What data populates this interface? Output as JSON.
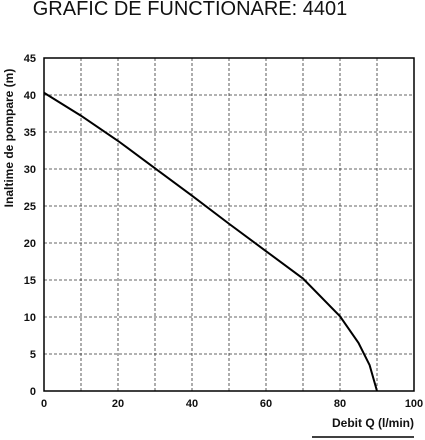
{
  "chart_data": {
    "type": "line",
    "title": "GRAFIC DE FUNCTIONARE: 4401",
    "x_label": "Debit  Q (l/min)",
    "y_label": "Inaltime de pompare (m)",
    "x": [
      0,
      10,
      20,
      30,
      40,
      50,
      60,
      70,
      80,
      85,
      88,
      90
    ],
    "series": [
      {
        "color": "#000000",
        "values": [
          40.3,
          37.2,
          33.8,
          30.1,
          26.4,
          22.6,
          18.9,
          15.2,
          10.1,
          6.5,
          3.5,
          0
        ]
      }
    ],
    "xlim": [
      0,
      100
    ],
    "ylim": [
      0,
      45
    ],
    "xticks": [
      0,
      20,
      40,
      60,
      80,
      100
    ],
    "x_minor_ticks": [
      10,
      30,
      50,
      70,
      90
    ],
    "yticks": [
      0,
      5,
      10,
      15,
      20,
      25,
      30,
      35,
      40,
      45
    ],
    "grid": true
  }
}
